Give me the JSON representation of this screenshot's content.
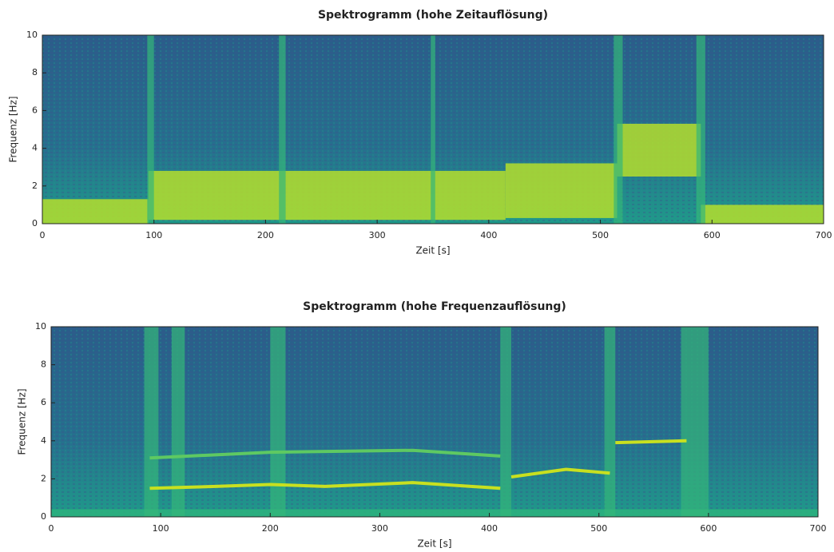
{
  "chart_data": [
    {
      "type": "spectrogram",
      "title": "Spektrogramm (hohe Zeitauflösung)",
      "xlabel": "Zeit [s]",
      "ylabel": "Frequenz [Hz]",
      "xlim": [
        0,
        700
      ],
      "ylim": [
        0,
        10
      ],
      "xticks": [
        0,
        100,
        200,
        300,
        400,
        500,
        600,
        700
      ],
      "yticks": [
        0,
        2,
        4,
        6,
        8,
        10
      ],
      "bands": {
        "color": "#b5de2b",
        "t_start": [
          0,
          95,
          415,
          515,
          590
        ],
        "t_end": [
          95,
          415,
          515,
          590,
          700
        ],
        "f_low": [
          0,
          0.2,
          0.3,
          2.5,
          0
        ],
        "f_high": [
          1.3,
          2.8,
          3.2,
          5.3,
          1.0
        ]
      },
      "stripes": {
        "color": "#35b779",
        "t_start": [
          94,
          212,
          348,
          512,
          586
        ],
        "t_end": [
          100,
          218,
          352,
          520,
          594
        ]
      },
      "ridges": []
    },
    {
      "type": "spectrogram",
      "title": "Spektrogramm (hohe Frequenzauflösung)",
      "xlabel": "Zeit [s]",
      "ylabel": "Frequenz [Hz]",
      "xlim": [
        0,
        700
      ],
      "ylim": [
        0,
        10
      ],
      "xticks": [
        0,
        100,
        200,
        300,
        400,
        500,
        600,
        700
      ],
      "yticks": [
        0,
        2,
        4,
        6,
        8,
        10
      ],
      "bands": {
        "color": "#2db27d",
        "t_start": [
          0
        ],
        "t_end": [
          700
        ],
        "f_low": [
          0
        ],
        "f_high": [
          0.4
        ]
      },
      "stripes": {
        "color": "#35b779",
        "t_start": [
          85,
          110,
          200,
          410,
          505,
          575
        ],
        "t_end": [
          98,
          122,
          214,
          420,
          515,
          600
        ]
      },
      "ridges": [
        {
          "color": "#c8e020",
          "x": [
            90,
            150,
            200,
            250,
            330,
            410,
            412,
            420,
            470,
            510,
            512,
            515,
            580
          ],
          "values": [
            1.5,
            1.6,
            1.7,
            1.6,
            1.8,
            1.5,
            null,
            2.1,
            2.5,
            2.3,
            null,
            3.9,
            4.0
          ]
        },
        {
          "color": "#5ec962",
          "x": [
            90,
            200,
            330,
            410
          ],
          "values": [
            3.1,
            3.4,
            3.5,
            3.2
          ]
        }
      ]
    }
  ]
}
